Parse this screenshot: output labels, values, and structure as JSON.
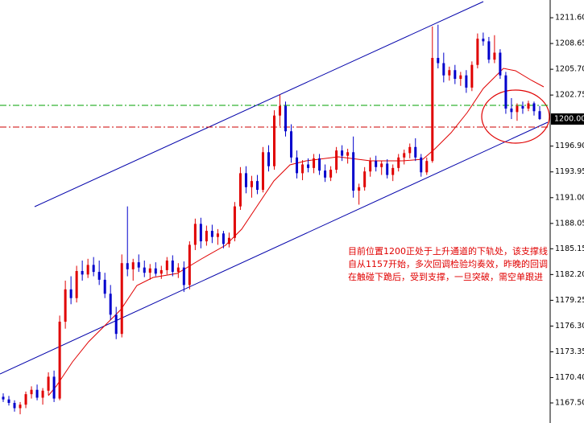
{
  "chart_data": {
    "type": "candlestick",
    "up_color": "#e00000",
    "down_color": "#0000cc",
    "ylim": [
      1165.2,
      1213.63
    ],
    "yticks": [
      {
        "value": 1211.6,
        "label": "1211.60"
      },
      {
        "value": 1208.65,
        "label": "1208.65"
      },
      {
        "value": 1205.7,
        "label": "1205.70"
      },
      {
        "value": 1202.75,
        "label": "1202.75"
      },
      {
        "value": 1196.9,
        "label": "1196.90"
      },
      {
        "value": 1193.95,
        "label": "1193.95"
      },
      {
        "value": 1191.0,
        "label": "1191.00"
      },
      {
        "value": 1188.05,
        "label": "1188.05"
      },
      {
        "value": 1185.15,
        "label": "1185.15"
      },
      {
        "value": 1182.2,
        "label": "1182.20"
      },
      {
        "value": 1179.25,
        "label": "1179.25"
      },
      {
        "value": 1176.3,
        "label": "1176.30"
      },
      {
        "value": 1173.35,
        "label": "1173.35"
      },
      {
        "value": 1170.4,
        "label": "1170.40"
      },
      {
        "value": 1167.5,
        "label": "1167.50"
      }
    ],
    "last_price": {
      "value": 1200.0,
      "label": "1200.00"
    },
    "levels": [
      {
        "value": 1201.57,
        "color": "#00a000"
      },
      {
        "value": 1199.08,
        "color": "#cc0000"
      }
    ],
    "annotation": [
      "目前位置1200正处于上升通道的下轨处，该支撑线",
      "自从1157开始，多次回调检验均奏效，昨晚的回调",
      "在触碰下跪后，受到支撑，一旦突破，需空单跟进"
    ],
    "ohlc": [
      [
        1168.2,
        1168.6,
        1167.6,
        1167.9
      ],
      [
        1167.9,
        1168.3,
        1167.2,
        1167.5
      ],
      [
        1167.5,
        1167.8,
        1166.5,
        1166.9
      ],
      [
        1166.9,
        1167.6,
        1166.2,
        1167.3
      ],
      [
        1167.3,
        1168.8,
        1166.9,
        1168.5
      ],
      [
        1168.5,
        1169.4,
        1168.0,
        1169.0
      ],
      [
        1169.0,
        1169.6,
        1167.8,
        1168.1
      ],
      [
        1168.1,
        1169.2,
        1167.3,
        1168.9
      ],
      [
        1168.9,
        1171.0,
        1168.4,
        1170.5
      ],
      [
        1170.5,
        1171.2,
        1167.6,
        1168.0
      ],
      [
        1168.0,
        1177.5,
        1167.8,
        1176.8
      ],
      [
        1176.8,
        1181.5,
        1176.0,
        1180.5
      ],
      [
        1180.5,
        1182.0,
        1178.8,
        1179.5
      ],
      [
        1179.5,
        1183.2,
        1179.0,
        1182.6
      ],
      [
        1182.6,
        1183.8,
        1181.5,
        1182.2
      ],
      [
        1182.2,
        1184.0,
        1181.8,
        1183.3
      ],
      [
        1183.3,
        1184.2,
        1182.0,
        1182.5
      ],
      [
        1182.5,
        1183.8,
        1181.0,
        1181.6
      ],
      [
        1181.6,
        1182.4,
        1179.5,
        1180.0
      ],
      [
        1180.0,
        1181.0,
        1177.0,
        1177.6
      ],
      [
        1177.6,
        1178.5,
        1174.8,
        1175.4
      ],
      [
        1175.4,
        1184.5,
        1175.0,
        1183.5
      ],
      [
        1183.5,
        1190.0,
        1182.0,
        1182.8
      ],
      [
        1182.8,
        1184.0,
        1181.5,
        1183.6
      ],
      [
        1183.6,
        1184.5,
        1182.5,
        1183.0
      ],
      [
        1183.0,
        1183.8,
        1181.9,
        1182.4
      ],
      [
        1182.4,
        1183.4,
        1181.6,
        1182.9
      ],
      [
        1182.9,
        1183.6,
        1182.0,
        1182.3
      ],
      [
        1182.3,
        1183.2,
        1181.7,
        1182.7
      ],
      [
        1182.7,
        1184.2,
        1182.2,
        1183.8
      ],
      [
        1183.8,
        1184.4,
        1182.0,
        1182.5
      ],
      [
        1182.5,
        1183.5,
        1181.8,
        1183.0
      ],
      [
        1183.0,
        1183.7,
        1180.2,
        1181.0
      ],
      [
        1181.0,
        1186.0,
        1180.5,
        1185.6
      ],
      [
        1185.6,
        1188.6,
        1185.0,
        1188.0
      ],
      [
        1188.0,
        1188.7,
        1185.2,
        1186.0
      ],
      [
        1186.0,
        1187.8,
        1185.5,
        1187.2
      ],
      [
        1187.2,
        1187.9,
        1185.8,
        1186.5
      ],
      [
        1186.5,
        1187.4,
        1185.6,
        1186.9
      ],
      [
        1186.9,
        1187.2,
        1185.2,
        1185.7
      ],
      [
        1185.7,
        1187.0,
        1185.3,
        1186.4
      ],
      [
        1186.4,
        1190.5,
        1186.0,
        1190.0
      ],
      [
        1190.0,
        1194.5,
        1189.6,
        1193.8
      ],
      [
        1193.8,
        1194.6,
        1191.5,
        1192.2
      ],
      [
        1192.2,
        1193.5,
        1191.0,
        1192.9
      ],
      [
        1192.9,
        1193.6,
        1191.4,
        1191.9
      ],
      [
        1191.9,
        1196.8,
        1191.6,
        1196.2
      ],
      [
        1196.2,
        1197.0,
        1194.0,
        1194.6
      ],
      [
        1194.6,
        1201.0,
        1194.2,
        1200.4
      ],
      [
        1200.4,
        1202.8,
        1199.2,
        1201.5
      ],
      [
        1201.5,
        1202.0,
        1198.0,
        1198.6
      ],
      [
        1198.6,
        1199.4,
        1195.0,
        1195.6
      ],
      [
        1195.6,
        1196.4,
        1193.2,
        1193.8
      ],
      [
        1193.8,
        1195.3,
        1193.0,
        1194.8
      ],
      [
        1194.8,
        1195.5,
        1193.9,
        1194.4
      ],
      [
        1194.4,
        1196.0,
        1193.8,
        1195.5
      ],
      [
        1195.5,
        1196.0,
        1193.6,
        1194.1
      ],
      [
        1194.1,
        1194.8,
        1192.8,
        1193.3
      ],
      [
        1193.3,
        1194.6,
        1192.9,
        1194.2
      ],
      [
        1194.2,
        1196.8,
        1193.8,
        1196.4
      ],
      [
        1196.4,
        1197.0,
        1195.2,
        1195.8
      ],
      [
        1195.8,
        1196.6,
        1194.9,
        1196.2
      ],
      [
        1196.2,
        1198.0,
        1191.0,
        1191.8
      ],
      [
        1191.8,
        1192.6,
        1190.2,
        1192.2
      ],
      [
        1192.2,
        1194.5,
        1191.8,
        1194.0
      ],
      [
        1194.0,
        1195.6,
        1193.4,
        1195.2
      ],
      [
        1195.2,
        1195.8,
        1194.0,
        1194.5
      ],
      [
        1194.5,
        1195.2,
        1193.6,
        1194.9
      ],
      [
        1194.9,
        1195.4,
        1193.2,
        1193.6
      ],
      [
        1193.6,
        1194.8,
        1192.9,
        1194.4
      ],
      [
        1194.4,
        1196.0,
        1194.0,
        1195.6
      ],
      [
        1195.6,
        1196.5,
        1194.8,
        1196.1
      ],
      [
        1196.1,
        1197.2,
        1195.5,
        1196.8
      ],
      [
        1196.8,
        1197.8,
        1195.2,
        1195.6
      ],
      [
        1195.6,
        1196.0,
        1193.4,
        1193.9
      ],
      [
        1193.9,
        1195.6,
        1193.6,
        1195.2
      ],
      [
        1195.2,
        1210.6,
        1195.0,
        1207.0
      ],
      [
        1207.0,
        1210.8,
        1205.8,
        1206.4
      ],
      [
        1206.4,
        1207.6,
        1204.2,
        1205.0
      ],
      [
        1205.0,
        1206.0,
        1204.4,
        1205.6
      ],
      [
        1205.6,
        1206.2,
        1204.0,
        1204.6
      ],
      [
        1204.6,
        1205.4,
        1203.8,
        1205.0
      ],
      [
        1205.0,
        1205.6,
        1203.0,
        1203.6
      ],
      [
        1203.6,
        1206.6,
        1203.2,
        1206.2
      ],
      [
        1206.2,
        1209.8,
        1205.8,
        1209.2
      ],
      [
        1209.2,
        1209.9,
        1208.4,
        1208.9
      ],
      [
        1208.9,
        1209.4,
        1206.4,
        1206.8
      ],
      [
        1206.8,
        1209.6,
        1206.4,
        1207.6
      ],
      [
        1207.6,
        1208.0,
        1204.6,
        1205.0
      ],
      [
        1205.0,
        1205.4,
        1200.6,
        1201.2
      ],
      [
        1201.2,
        1202.4,
        1200.0,
        1200.8
      ],
      [
        1200.8,
        1201.8,
        1199.8,
        1201.5
      ],
      [
        1201.5,
        1202.0,
        1200.6,
        1201.2
      ],
      [
        1201.2,
        1202.1,
        1200.9,
        1201.8
      ],
      [
        1201.8,
        1202.0,
        1200.4,
        1200.9
      ],
      [
        1200.9,
        1201.5,
        1199.9,
        1200.0
      ]
    ]
  }
}
